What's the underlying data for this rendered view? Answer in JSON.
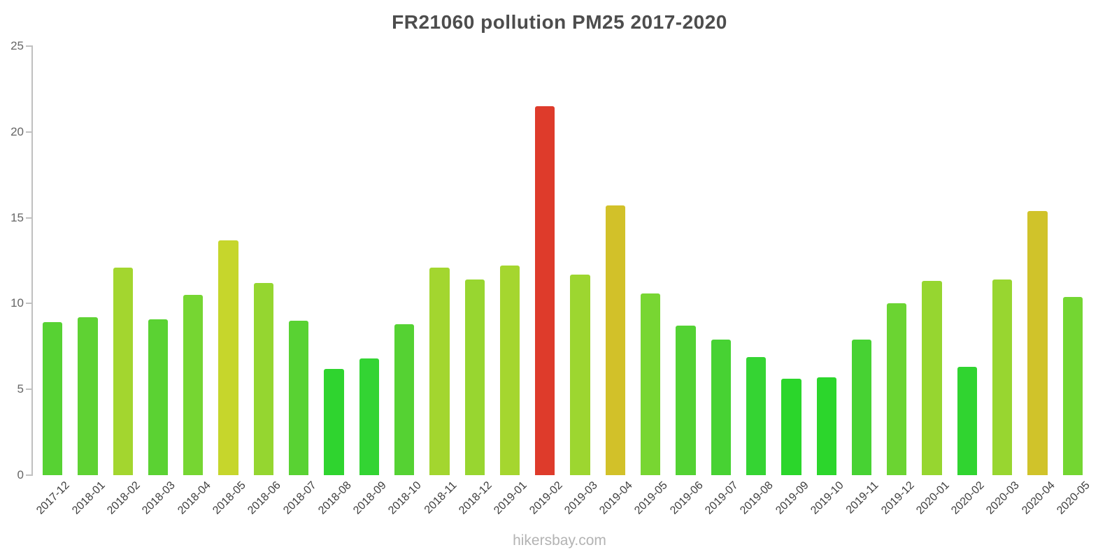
{
  "chart_data": {
    "type": "bar",
    "title": "FR21060 pollution PM25 2017-2020",
    "xlabel": "",
    "ylabel": "",
    "ylim": [
      0,
      25
    ],
    "yticks": [
      0,
      5,
      10,
      15,
      20,
      25
    ],
    "grid": false,
    "legend": "none",
    "categories": [
      "2017-12",
      "2018-01",
      "2018-02",
      "2018-03",
      "2018-04",
      "2018-05",
      "2018-06",
      "2018-07",
      "2018-08",
      "2018-09",
      "2018-10",
      "2018-11",
      "2018-12",
      "2019-01",
      "2019-02",
      "2019-03",
      "2019-04",
      "2019-05",
      "2019-06",
      "2019-07",
      "2019-08",
      "2019-09",
      "2019-10",
      "2019-11",
      "2019-12",
      "2020-01",
      "2020-02",
      "2020-03",
      "2020-04",
      "2020-05"
    ],
    "values": [
      8.9,
      9.2,
      12.1,
      9.1,
      10.5,
      13.7,
      11.2,
      9.0,
      6.2,
      6.8,
      8.8,
      12.1,
      11.4,
      12.2,
      21.5,
      11.7,
      15.7,
      10.6,
      8.7,
      7.9,
      6.9,
      5.6,
      5.7,
      7.9,
      10.0,
      11.3,
      6.3,
      11.4,
      15.4,
      10.4
    ],
    "colors": [
      "#57d233",
      "#5fd233",
      "#a3d62f",
      "#5bd233",
      "#76d632",
      "#c6d62c",
      "#95d630",
      "#59d233",
      "#2fd42f",
      "#33d433",
      "#55d233",
      "#a3d62f",
      "#98d630",
      "#a5d62f",
      "#de3b2b",
      "#9dd630",
      "#d2c129",
      "#78d632",
      "#53d233",
      "#47d233",
      "#35d433",
      "#2bd62b",
      "#2cd62c",
      "#47d233",
      "#6bd432",
      "#96d630",
      "#30d430",
      "#98d630",
      "#d0c32a",
      "#74d632"
    ]
  },
  "footer": {
    "watermark": "hikersbay.com"
  }
}
